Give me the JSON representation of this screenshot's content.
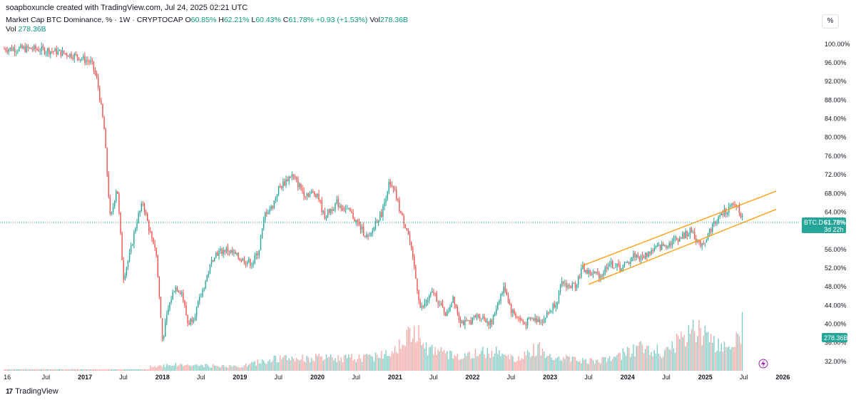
{
  "header": {
    "creator": "soapboxuncle created with TradingView.com, Jul 24, 2025 02:21 UTC",
    "symbol": "Market Cap BTC Dominance, % · 1W · CRYPTOCAP",
    "open_label": "O",
    "open": "60.85%",
    "high_label": "H",
    "high": "62.21%",
    "low_label": "L",
    "low": "60.43%",
    "close_label": "C",
    "close": "61.78%",
    "change": "+0.93 (+1.53%)",
    "vol_label": "Vol",
    "vol": "278.36B",
    "vol_header": "278.36B"
  },
  "toolbar": {
    "percent_button": "%"
  },
  "footer": {
    "brand": "TradingView",
    "logo": "17"
  },
  "colors": {
    "up": "#26a69a",
    "down": "#ef5350",
    "vol_up": "#80cbc4",
    "vol_down": "#f7a9a7",
    "channel": "#ff9800",
    "price_line": "#26a69a",
    "axis_text": "#131722"
  },
  "chart_data": {
    "type": "candlestick",
    "title": "Market Cap BTC Dominance, %",
    "timeframe": "1W",
    "xlabel": "",
    "ylabel": "",
    "ylim": [
      30.0,
      101.5
    ],
    "x_ticks": [
      "16",
      "Jul",
      "2017",
      "Jul",
      "2018",
      "Jul",
      "2019",
      "Jul",
      "2020",
      "Jul",
      "2021",
      "Jul",
      "2022",
      "Jul",
      "2023",
      "Jul",
      "2024",
      "Jul",
      "2025",
      "Jul",
      "2026"
    ],
    "y_ticks": [
      "100.00%",
      "96.00%",
      "92.00%",
      "88.00%",
      "84.00%",
      "80.00%",
      "76.00%",
      "72.00%",
      "68.00%",
      "64.00%",
      "60.00%",
      "56.00%",
      "52.00%",
      "48.00%",
      "44.00%",
      "40.00%",
      "36.00%",
      "32.00%"
    ],
    "price_series": [
      {
        "date": "2016-05",
        "value": 99.0
      },
      {
        "date": "2016-08",
        "value": 98.5
      },
      {
        "date": "2016-10",
        "value": 98.0
      },
      {
        "date": "2016-12",
        "value": 97.3
      },
      {
        "date": "2017-02",
        "value": 96.0
      },
      {
        "date": "2017-03",
        "value": 92.0
      },
      {
        "date": "2017-04",
        "value": 82.0
      },
      {
        "date": "2017-05",
        "value": 62.0
      },
      {
        "date": "2017-06",
        "value": 70.0
      },
      {
        "date": "2017-07",
        "value": 50.0
      },
      {
        "date": "2017-08",
        "value": 55.0
      },
      {
        "date": "2017-09",
        "value": 62.0
      },
      {
        "date": "2017-10",
        "value": 66.0
      },
      {
        "date": "2017-11",
        "value": 60.0
      },
      {
        "date": "2017-12",
        "value": 56.0
      },
      {
        "date": "2018-01",
        "value": 36.5
      },
      {
        "date": "2018-02",
        "value": 44.0
      },
      {
        "date": "2018-03",
        "value": 48.0
      },
      {
        "date": "2018-04",
        "value": 47.0
      },
      {
        "date": "2018-05",
        "value": 40.0
      },
      {
        "date": "2018-06",
        "value": 42.0
      },
      {
        "date": "2018-07",
        "value": 46.0
      },
      {
        "date": "2018-09",
        "value": 55.0
      },
      {
        "date": "2018-11",
        "value": 56.0
      },
      {
        "date": "2019-01",
        "value": 54.0
      },
      {
        "date": "2019-03",
        "value": 53.0
      },
      {
        "date": "2019-04",
        "value": 56.0
      },
      {
        "date": "2019-05",
        "value": 64.0
      },
      {
        "date": "2019-06",
        "value": 65.0
      },
      {
        "date": "2019-07",
        "value": 69.0
      },
      {
        "date": "2019-09",
        "value": 72.0
      },
      {
        "date": "2019-11",
        "value": 68.0
      },
      {
        "date": "2020-01",
        "value": 68.0
      },
      {
        "date": "2020-02",
        "value": 63.0
      },
      {
        "date": "2020-04",
        "value": 66.0
      },
      {
        "date": "2020-06",
        "value": 64.0
      },
      {
        "date": "2020-08",
        "value": 60.0
      },
      {
        "date": "2020-09",
        "value": 58.0
      },
      {
        "date": "2020-10",
        "value": 62.0
      },
      {
        "date": "2020-11",
        "value": 64.0
      },
      {
        "date": "2020-12",
        "value": 70.0
      },
      {
        "date": "2021-01",
        "value": 68.0
      },
      {
        "date": "2021-02",
        "value": 63.0
      },
      {
        "date": "2021-03",
        "value": 60.0
      },
      {
        "date": "2021-04",
        "value": 52.0
      },
      {
        "date": "2021-05",
        "value": 43.0
      },
      {
        "date": "2021-06",
        "value": 45.0
      },
      {
        "date": "2021-07",
        "value": 47.0
      },
      {
        "date": "2021-08",
        "value": 44.0
      },
      {
        "date": "2021-09",
        "value": 42.0
      },
      {
        "date": "2021-10",
        "value": 46.0
      },
      {
        "date": "2021-11",
        "value": 41.0
      },
      {
        "date": "2021-12",
        "value": 40.0
      },
      {
        "date": "2022-01",
        "value": 41.0
      },
      {
        "date": "2022-02",
        "value": 42.0
      },
      {
        "date": "2022-04",
        "value": 40.0
      },
      {
        "date": "2022-05",
        "value": 45.0
      },
      {
        "date": "2022-06",
        "value": 48.0
      },
      {
        "date": "2022-07",
        "value": 43.0
      },
      {
        "date": "2022-09",
        "value": 40.0
      },
      {
        "date": "2022-10",
        "value": 41.0
      },
      {
        "date": "2022-12",
        "value": 41.0
      },
      {
        "date": "2023-02",
        "value": 45.0
      },
      {
        "date": "2023-03",
        "value": 49.0
      },
      {
        "date": "2023-04",
        "value": 48.0
      },
      {
        "date": "2023-05",
        "value": 48.5
      },
      {
        "date": "2023-06",
        "value": 52.0
      },
      {
        "date": "2023-07",
        "value": 51.0
      },
      {
        "date": "2023-09",
        "value": 50.5
      },
      {
        "date": "2023-10",
        "value": 53.0
      },
      {
        "date": "2023-12",
        "value": 52.0
      },
      {
        "date": "2024-01",
        "value": 53.0
      },
      {
        "date": "2024-02",
        "value": 55.0
      },
      {
        "date": "2024-03",
        "value": 54.0
      },
      {
        "date": "2024-05",
        "value": 56.0
      },
      {
        "date": "2024-07",
        "value": 57.0
      },
      {
        "date": "2024-09",
        "value": 58.5
      },
      {
        "date": "2024-11",
        "value": 60.0
      },
      {
        "date": "2024-12",
        "value": 57.0
      },
      {
        "date": "2025-01",
        "value": 58.0
      },
      {
        "date": "2025-02",
        "value": 61.0
      },
      {
        "date": "2025-03",
        "value": 62.5
      },
      {
        "date": "2025-04",
        "value": 64.0
      },
      {
        "date": "2025-05",
        "value": 65.0
      },
      {
        "date": "2025-06",
        "value": 65.5
      },
      {
        "date": "2025-07",
        "value": 61.78
      }
    ],
    "volume_ylim": [
      0,
      63
    ],
    "volume_series": [
      {
        "date": "2017-12",
        "value": 4
      },
      {
        "date": "2018-02",
        "value": 6
      },
      {
        "date": "2018-06",
        "value": 5
      },
      {
        "date": "2019-01",
        "value": 4
      },
      {
        "date": "2019-06",
        "value": 11
      },
      {
        "date": "2019-12",
        "value": 12
      },
      {
        "date": "2020-06",
        "value": 12
      },
      {
        "date": "2020-09",
        "value": 13
      },
      {
        "date": "2020-12",
        "value": 17
      },
      {
        "date": "2021-01",
        "value": 23
      },
      {
        "date": "2021-05",
        "value": 40
      },
      {
        "date": "2021-06",
        "value": 22
      },
      {
        "date": "2021-09",
        "value": 15
      },
      {
        "date": "2021-12",
        "value": 14
      },
      {
        "date": "2022-05",
        "value": 20
      },
      {
        "date": "2022-08",
        "value": 10
      },
      {
        "date": "2022-11",
        "value": 22
      },
      {
        "date": "2023-02",
        "value": 13
      },
      {
        "date": "2023-06",
        "value": 10
      },
      {
        "date": "2023-10",
        "value": 10
      },
      {
        "date": "2024-03",
        "value": 22
      },
      {
        "date": "2024-07",
        "value": 17
      },
      {
        "date": "2024-11",
        "value": 42
      },
      {
        "date": "2025-01",
        "value": 35
      },
      {
        "date": "2025-03",
        "value": 25
      },
      {
        "date": "2025-05",
        "value": 20
      },
      {
        "date": "2025-07",
        "value": 44
      }
    ],
    "last_price": {
      "symbol": "BTC.D",
      "value": "61.78%",
      "countdown": "3d 22h",
      "y": 61.78
    },
    "last_volume": {
      "value": "278.36B"
    },
    "channel": [
      {
        "name": "upper",
        "from": {
          "date": "2023-06",
          "value": 52.5
        },
        "to": {
          "date": "2025-12",
          "value": 68.5
        }
      },
      {
        "name": "lower",
        "from": {
          "date": "2023-07",
          "value": 48.5
        },
        "to": {
          "date": "2025-12",
          "value": 64.6
        }
      }
    ],
    "grid": false
  }
}
